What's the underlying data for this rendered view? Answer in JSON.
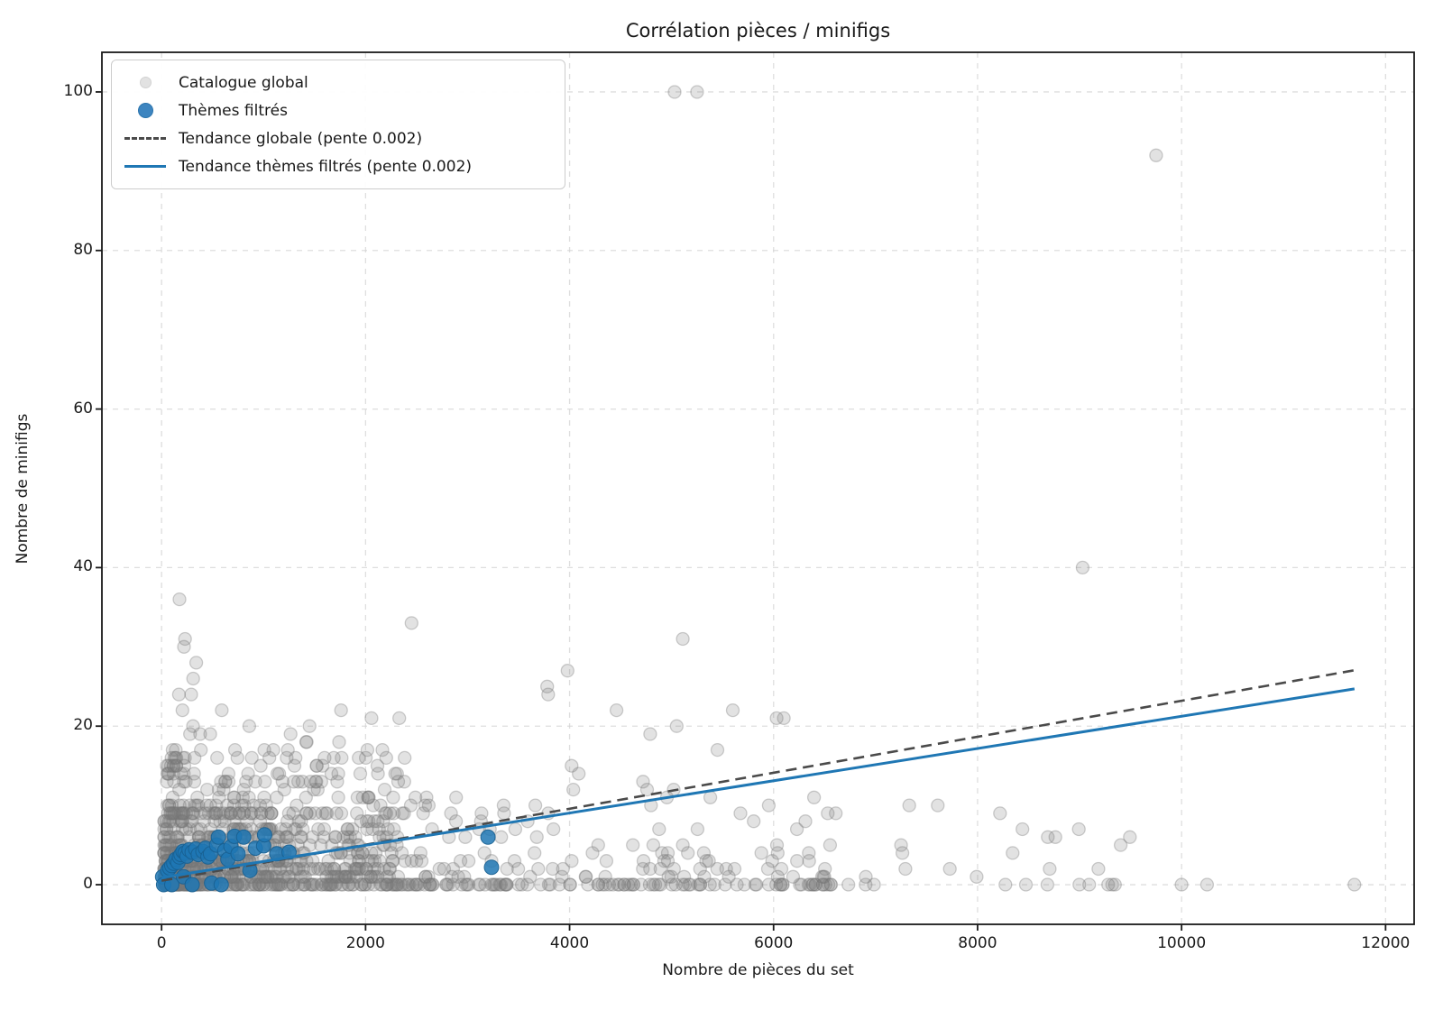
{
  "chart": {
    "title": "Corrélation pièces / minifigs",
    "xlabel": "Nombre de pièces du set",
    "ylabel": "Nombre de minifigs"
  },
  "legend": {
    "items": [
      {
        "label": "Catalogue global",
        "marker": "dot",
        "color": "#e2e2e2",
        "edge": "#d2d2d2",
        "size": 11
      },
      {
        "label": "Thèmes filtrés",
        "marker": "dot",
        "color": "#3d85c0",
        "edge": "#2b74ad",
        "size": 15
      },
      {
        "label": "Tendance globale (pente 0.002)",
        "marker": "dash",
        "color": "#4a4a4a",
        "size": 46
      },
      {
        "label": "Tendance thèmes filtrés (pente 0.002)",
        "marker": "line",
        "color": "#1f77b4",
        "size": 46
      }
    ]
  },
  "chart_data": {
    "type": "scatter",
    "title": "Corrélation pièces / minifigs",
    "xlabel": "Nombre de pièces du set",
    "ylabel": "Nombre de minifigs",
    "xlim": [
      -585,
      12280
    ],
    "ylim": [
      -5,
      105
    ],
    "x_ticks": [
      0,
      2000,
      4000,
      6000,
      8000,
      10000,
      12000
    ],
    "y_ticks": [
      0,
      20,
      40,
      60,
      80,
      100
    ],
    "grid": true,
    "legend_position": "upper-left",
    "colors": {
      "global_points": "#bdbdbd",
      "filtered_points": "#1f77b4",
      "trend_global": "#4a4a4a",
      "trend_filtered": "#1f77b4",
      "gridline": "#d4d4d4",
      "frame": "#1a1a1a"
    },
    "series": [
      {
        "name": "Catalogue global",
        "type": "scatter",
        "marker_radius": 7,
        "fill": "rgba(125,125,125,0.22)",
        "stroke": "rgba(118,118,118,0.35)",
        "outlier_points": [
          [
            175,
            36
          ],
          [
            230,
            31
          ],
          [
            220,
            30
          ],
          [
            340,
            28
          ],
          [
            310,
            26
          ],
          [
            170,
            24
          ],
          [
            290,
            24
          ],
          [
            205,
            22
          ],
          [
            590,
            22
          ],
          [
            860,
            20
          ],
          [
            1450,
            20
          ],
          [
            1760,
            22
          ],
          [
            2330,
            21
          ],
          [
            2450,
            33
          ],
          [
            3460,
            3
          ],
          [
            3780,
            25
          ],
          [
            3790,
            24
          ],
          [
            3980,
            27
          ],
          [
            4020,
            15
          ],
          [
            4090,
            14
          ],
          [
            4460,
            22
          ],
          [
            4720,
            13
          ],
          [
            4760,
            12
          ],
          [
            4790,
            19
          ],
          [
            5030,
            100
          ],
          [
            5050,
            20
          ],
          [
            5110,
            31
          ],
          [
            5110,
            5
          ],
          [
            5250,
            100
          ],
          [
            5280,
            2
          ],
          [
            5380,
            11
          ],
          [
            5450,
            17
          ],
          [
            5600,
            22
          ],
          [
            5880,
            4
          ],
          [
            6030,
            21
          ],
          [
            6100,
            21
          ],
          [
            6040,
            4
          ],
          [
            6610,
            9
          ],
          [
            7330,
            10
          ],
          [
            7610,
            10
          ],
          [
            8220,
            9
          ],
          [
            9030,
            40
          ],
          [
            9280,
            0
          ],
          [
            9320,
            0
          ],
          [
            9750,
            92
          ],
          [
            10000,
            0
          ],
          [
            10250,
            0
          ],
          [
            11695,
            0
          ]
        ],
        "cluster_spec": {
          "seed": 42,
          "clusters": [
            {
              "count": 640,
              "x_min": 25,
              "x_max": 2300,
              "x_pow": 1.7,
              "y_base": 0,
              "y_span": 9,
              "y_pow": 2.1
            },
            {
              "count": 150,
              "x_min": 50,
              "x_max": 2400,
              "x_pow": 1.5,
              "y_base": 9,
              "y_span": 8,
              "y_pow": 2.0
            },
            {
              "count": 34,
              "x_min": 90,
              "x_max": 2200,
              "x_pow": 1.2,
              "y_base": 13,
              "y_span": 8,
              "y_pow": 1.6
            },
            {
              "count": 165,
              "x_min": 2300,
              "x_max": 6600,
              "x_pow": 1.25,
              "y_base": 0,
              "y_span": 12,
              "y_pow": 2.6
            },
            {
              "count": 55,
              "x_min": 2300,
              "x_max": 7000,
              "x_pow": 1.0,
              "y_base": 0,
              "y_span": 0,
              "y_pow": 1.0
            },
            {
              "count": 22,
              "x_min": 6700,
              "x_max": 9600,
              "x_pow": 1.0,
              "y_base": 0,
              "y_span": 8,
              "y_pow": 3.0
            }
          ]
        }
      },
      {
        "name": "Thèmes filtrés",
        "type": "scatter",
        "marker_radius": 8,
        "fill": "rgba(31,119,180,0.85)",
        "stroke": "rgba(24,95,144,0.9)",
        "points": [
          [
            10,
            1
          ],
          [
            20,
            0
          ],
          [
            60,
            1.8
          ],
          [
            80,
            2.1
          ],
          [
            100,
            2.4
          ],
          [
            100,
            0
          ],
          [
            120,
            2.7
          ],
          [
            140,
            3.2
          ],
          [
            160,
            2.8
          ],
          [
            175,
            3.5
          ],
          [
            190,
            3.8
          ],
          [
            215,
            1
          ],
          [
            210,
            4.2
          ],
          [
            230,
            4
          ],
          [
            250,
            3.6
          ],
          [
            270,
            4.4
          ],
          [
            300,
            4.1
          ],
          [
            300,
            0
          ],
          [
            335,
            4.5
          ],
          [
            360,
            3.8
          ],
          [
            405,
            4.2
          ],
          [
            430,
            4.6
          ],
          [
            455,
            3.5
          ],
          [
            480,
            3.9
          ],
          [
            490,
            0.2
          ],
          [
            540,
            5
          ],
          [
            557,
            6
          ],
          [
            585,
            0
          ],
          [
            620,
            4.3
          ],
          [
            650,
            3.2
          ],
          [
            680,
            4.8
          ],
          [
            715,
            6.1
          ],
          [
            750,
            3.9
          ],
          [
            805,
            6
          ],
          [
            866,
            1.8
          ],
          [
            920,
            4.6
          ],
          [
            1000,
            4.9
          ],
          [
            1010,
            6.3
          ],
          [
            1130,
            3.9
          ],
          [
            1250,
            4.1
          ],
          [
            3200,
            6
          ],
          [
            3235,
            2.2
          ]
        ]
      },
      {
        "name": "Tendance globale (pente 0.002)",
        "type": "line",
        "style": "dashed",
        "color": "#4a4a4a",
        "width": 2.6,
        "slope": 0.00227,
        "intercept": 0.5,
        "x_range": [
          0,
          11695
        ]
      },
      {
        "name": "Tendance thèmes filtrés (pente 0.002)",
        "type": "line",
        "style": "solid",
        "color": "#1f77b4",
        "width": 3,
        "slope": 0.002035,
        "intercept": 0.9,
        "x_range": [
          0,
          11695
        ]
      }
    ]
  }
}
